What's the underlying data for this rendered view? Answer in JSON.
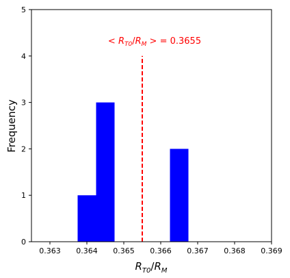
{
  "chart_data": {
    "type": "bar",
    "subtype": "histogram",
    "bins": [
      {
        "x0": 0.36375,
        "x1": 0.36425,
        "count": 1
      },
      {
        "x0": 0.36425,
        "x1": 0.36475,
        "count": 3
      },
      {
        "x0": 0.36475,
        "x1": 0.36525,
        "count": 0
      },
      {
        "x0": 0.36525,
        "x1": 0.36575,
        "count": 0
      },
      {
        "x0": 0.36575,
        "x1": 0.36625,
        "count": 0
      },
      {
        "x0": 0.36625,
        "x1": 0.36675,
        "count": 2
      }
    ],
    "bar_color": "#0000ff",
    "xlim": [
      0.3625,
      0.369
    ],
    "ylim": [
      0,
      5
    ],
    "x_ticks": [
      0.363,
      0.364,
      0.365,
      0.366,
      0.367,
      0.368,
      0.369
    ],
    "x_tick_labels": [
      "0.363",
      "0.364",
      "0.365",
      "0.366",
      "0.367",
      "0.368",
      "0.369"
    ],
    "y_ticks": [
      0,
      1,
      2,
      3,
      4,
      5
    ],
    "y_tick_labels": [
      "0",
      "1",
      "2",
      "3",
      "4",
      "5"
    ],
    "xlabel": "R_T0/R_M",
    "ylabel": "Frequency",
    "mean_line": {
      "x": 0.3655,
      "y_range": [
        0,
        4
      ],
      "color": "#ff0000",
      "style": "dashed"
    },
    "annotation": {
      "text": "< R_T0/R_M >  = 0.3655",
      "color": "#ff0000",
      "x": 0.3655,
      "y": 4.3
    },
    "grid": false,
    "legend": "none"
  }
}
